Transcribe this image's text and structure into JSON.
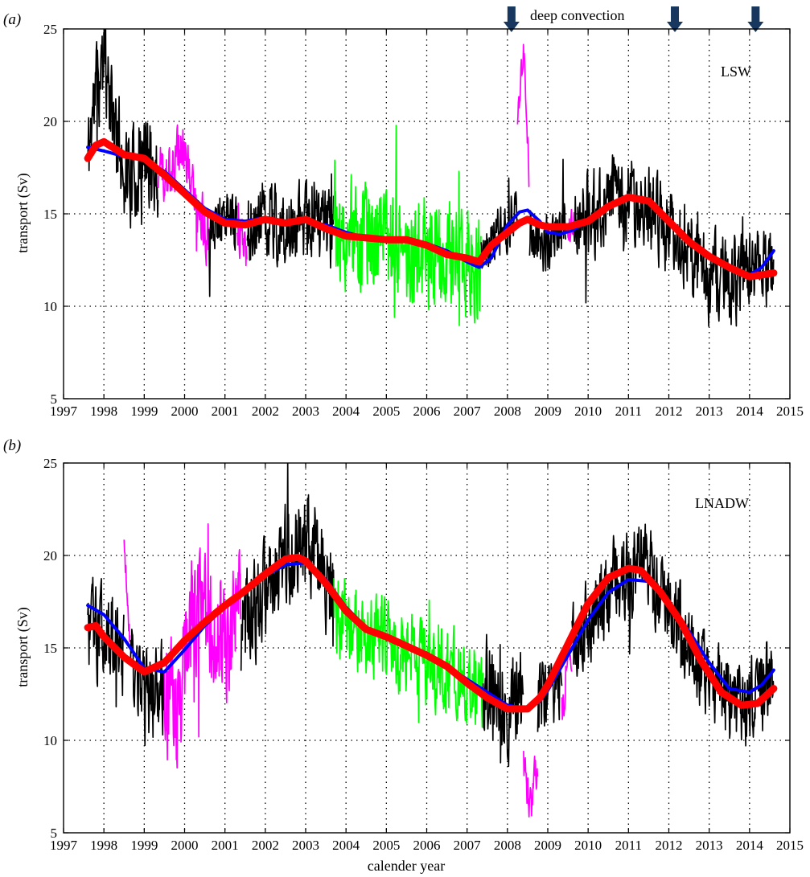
{
  "figure": {
    "xlabel": "calender year",
    "annotation": "deep convection",
    "convection_years": [
      2008.1,
      2012.15,
      2014.15
    ],
    "panels": [
      {
        "label": "(a)",
        "tag": "LSW",
        "ylabel": "transport (Sv)"
      },
      {
        "label": "(b)",
        "tag": "LNADW",
        "ylabel": "transport (Sv)"
      }
    ]
  },
  "chart_data": [
    {
      "type": "line",
      "panel_label": "(a)",
      "title": "LSW",
      "xlabel": "",
      "ylabel": "transport (Sv)",
      "xlim": [
        1997,
        2015
      ],
      "ylim": [
        5,
        25
      ],
      "xticks": [
        1997,
        1998,
        1999,
        2000,
        2001,
        2002,
        2003,
        2004,
        2005,
        2006,
        2007,
        2008,
        2009,
        2010,
        2011,
        2012,
        2013,
        2014,
        2015
      ],
      "yticks": [
        5,
        10,
        15,
        20,
        25
      ],
      "grid": true,
      "colors": {
        "raw": "#000000",
        "interpolated": "#ff00ff",
        "other_array": "#00ff00",
        "fit": "#0000ff",
        "smooth": "#ff0000"
      },
      "raw_segments": [
        {
          "color": "#000000",
          "x0": 1997.6,
          "x1": 1999.35,
          "anchors": [
            [
              1997.6,
              18
            ],
            [
              1997.8,
              22
            ],
            [
              1998.0,
              23
            ],
            [
              1998.3,
              19
            ],
            [
              1998.7,
              17
            ],
            [
              1999.0,
              18
            ],
            [
              1999.35,
              17
            ]
          ],
          "amplitude": 3.5,
          "seed": 11
        },
        {
          "color": "#ff00ff",
          "x0": 1999.35,
          "x1": 2000.6,
          "anchors": [
            [
              1999.35,
              17
            ],
            [
              1999.8,
              18
            ],
            [
              2000.0,
              19
            ],
            [
              2000.3,
              15
            ],
            [
              2000.6,
              14
            ]
          ],
          "amplitude": 2.2,
          "seed": 12
        },
        {
          "color": "#000000",
          "x0": 2000.6,
          "x1": 2001.3,
          "anchors": [
            [
              2000.6,
              14
            ],
            [
              2000.9,
              15
            ],
            [
              2001.3,
              14.5
            ]
          ],
          "amplitude": 2.0,
          "seed": 13
        },
        {
          "color": "#ff00ff",
          "x0": 2001.3,
          "x1": 2001.55,
          "anchors": [
            [
              2001.3,
              14
            ],
            [
              2001.55,
              13
            ]
          ],
          "amplitude": 1.5,
          "seed": 14
        },
        {
          "color": "#000000",
          "x0": 2001.55,
          "x1": 2003.7,
          "anchors": [
            [
              2001.55,
              14.5
            ],
            [
              2002.1,
              15
            ],
            [
              2002.6,
              14
            ],
            [
              2003.0,
              15
            ],
            [
              2003.4,
              14.5
            ],
            [
              2003.7,
              14
            ]
          ],
          "amplitude": 2.8,
          "seed": 15
        },
        {
          "color": "#00ff00",
          "x0": 2003.7,
          "x1": 2007.35,
          "anchors": [
            [
              2003.7,
              14
            ],
            [
              2004.3,
              13.5
            ],
            [
              2005.0,
              13.5
            ],
            [
              2005.7,
              13
            ],
            [
              2006.3,
              13
            ],
            [
              2007.0,
              12.5
            ],
            [
              2007.35,
              12
            ]
          ],
          "amplitude": 4.0,
          "seed": 16
        },
        {
          "color": "#000000",
          "x0": 2007.35,
          "x1": 2008.25,
          "anchors": [
            [
              2007.35,
              13
            ],
            [
              2007.8,
              14
            ],
            [
              2008.25,
              15
            ]
          ],
          "amplitude": 2.0,
          "seed": 17
        },
        {
          "color": "#ff00ff",
          "x0": 2008.25,
          "x1": 2008.55,
          "anchors": [
            [
              2008.25,
              20
            ],
            [
              2008.4,
              24
            ],
            [
              2008.55,
              16
            ]
          ],
          "amplitude": 1.2,
          "seed": 18
        },
        {
          "color": "#000000",
          "x0": 2008.55,
          "x1": 2009.45,
          "anchors": [
            [
              2008.55,
              14
            ],
            [
              2009.0,
              13.5
            ],
            [
              2009.45,
              14
            ]
          ],
          "amplitude": 2.2,
          "seed": 19
        },
        {
          "color": "#ff00ff",
          "x0": 2009.45,
          "x1": 2009.65,
          "anchors": [
            [
              2009.45,
              14
            ],
            [
              2009.65,
              14.5
            ]
          ],
          "amplitude": 1.2,
          "seed": 20
        },
        {
          "color": "#000000",
          "x0": 2009.65,
          "x1": 2014.6,
          "anchors": [
            [
              2009.65,
              14.5
            ],
            [
              2010.3,
              15.5
            ],
            [
              2010.9,
              16
            ],
            [
              2011.5,
              15.5
            ],
            [
              2012.0,
              14
            ],
            [
              2012.5,
              13
            ],
            [
              2013.0,
              11.5
            ],
            [
              2013.5,
              11.5
            ],
            [
              2014.0,
              11.5
            ],
            [
              2014.6,
              12
            ]
          ],
          "amplitude": 3.2,
          "seed": 21
        }
      ],
      "series": [
        {
          "name": "",
          "color": "#0000ff",
          "x": [
            1997.6,
            1998.0,
            1998.5,
            1999.0,
            1999.5,
            2000.0,
            2000.5,
            2001.0,
            2001.5,
            2002.0,
            2002.5,
            2003.0,
            2003.5,
            2004.0,
            2004.5,
            2005.0,
            2005.5,
            2006.0,
            2006.5,
            2007.0,
            2007.3,
            2007.6,
            2008.0,
            2008.3,
            2008.5,
            2008.8,
            2009.0,
            2009.3,
            2009.6,
            2010.0,
            2010.5,
            2011.0,
            2011.5,
            2012.0,
            2012.5,
            2013.0,
            2013.5,
            2014.0,
            2014.3,
            2014.6
          ],
          "values": [
            18.6,
            18.4,
            18.1,
            17.9,
            17.3,
            16.3,
            15.3,
            14.7,
            14.6,
            14.8,
            14.6,
            14.6,
            14.4,
            14.0,
            13.7,
            13.6,
            13.6,
            13.4,
            13.0,
            12.4,
            12.1,
            12.6,
            14.4,
            15.1,
            15.2,
            14.6,
            14.0,
            13.9,
            14.1,
            14.6,
            15.4,
            15.8,
            15.6,
            14.6,
            13.5,
            12.8,
            12.2,
            11.7,
            12.1,
            13.0
          ]
        },
        {
          "name": "",
          "color": "#ff0000",
          "x": [
            1997.6,
            1997.8,
            1998.0,
            1998.5,
            1999.0,
            1999.5,
            2000.0,
            2000.5,
            2001.0,
            2001.5,
            2002.0,
            2002.5,
            2003.0,
            2003.5,
            2004.0,
            2004.5,
            2005.0,
            2005.5,
            2006.0,
            2006.5,
            2007.0,
            2007.3,
            2007.6,
            2008.0,
            2008.3,
            2008.5,
            2008.8,
            2009.0,
            2009.5,
            2010.0,
            2010.5,
            2011.0,
            2011.5,
            2012.0,
            2012.5,
            2013.0,
            2013.5,
            2014.0,
            2014.3,
            2014.6
          ],
          "values": [
            18.0,
            18.7,
            18.9,
            18.2,
            18.0,
            17.1,
            16.1,
            15.1,
            14.5,
            14.4,
            14.7,
            14.5,
            14.7,
            14.2,
            13.8,
            13.7,
            13.6,
            13.6,
            13.3,
            12.8,
            12.6,
            12.4,
            13.3,
            14.0,
            14.5,
            14.7,
            14.4,
            14.3,
            14.3,
            14.6,
            15.4,
            15.9,
            15.7,
            14.6,
            13.5,
            12.7,
            12.1,
            11.6,
            11.7,
            11.8
          ]
        }
      ]
    },
    {
      "type": "line",
      "panel_label": "(b)",
      "title": "LNADW",
      "xlabel": "calender year",
      "ylabel": "transport (Sv)",
      "xlim": [
        1997,
        2015
      ],
      "ylim": [
        5,
        25
      ],
      "xticks": [
        1997,
        1998,
        1999,
        2000,
        2001,
        2002,
        2003,
        2004,
        2005,
        2006,
        2007,
        2008,
        2009,
        2010,
        2011,
        2012,
        2013,
        2014,
        2015
      ],
      "yticks": [
        5,
        10,
        15,
        20,
        25
      ],
      "grid": true,
      "colors": {
        "raw": "#000000",
        "interpolated": "#ff00ff",
        "other_array": "#00ff00",
        "fit": "#0000ff",
        "smooth": "#ff0000"
      },
      "raw_segments": [
        {
          "color": "#000000",
          "x0": 1997.6,
          "x1": 1998.5,
          "anchors": [
            [
              1997.6,
              16
            ],
            [
              1998.0,
              16
            ],
            [
              1998.5,
              15
            ]
          ],
          "amplitude": 3.5,
          "seed": 31
        },
        {
          "color": "#ff00ff",
          "x0": 1998.5,
          "x1": 1998.65,
          "anchors": [
            [
              1998.5,
              21
            ],
            [
              1998.65,
              15
            ]
          ],
          "amplitude": 1.0,
          "seed": 32
        },
        {
          "color": "#000000",
          "x0": 1998.65,
          "x1": 1999.5,
          "anchors": [
            [
              1998.65,
              14
            ],
            [
              1999.0,
              12
            ],
            [
              1999.5,
              13
            ]
          ],
          "amplitude": 3.2,
          "seed": 33
        },
        {
          "color": "#ff00ff",
          "x0": 1999.5,
          "x1": 2001.4,
          "anchors": [
            [
              1999.5,
              13
            ],
            [
              1999.8,
              11
            ],
            [
              2000.1,
              16
            ],
            [
              2000.4,
              18
            ],
            [
              2000.8,
              16
            ],
            [
              2001.1,
              15
            ],
            [
              2001.4,
              18
            ]
          ],
          "amplitude": 4.5,
          "seed": 34
        },
        {
          "color": "#000000",
          "x0": 2001.4,
          "x1": 2003.7,
          "anchors": [
            [
              2001.4,
              16
            ],
            [
              2002.0,
              18
            ],
            [
              2002.5,
              20
            ],
            [
              2003.0,
              21
            ],
            [
              2003.4,
              19
            ],
            [
              2003.7,
              18
            ]
          ],
          "amplitude": 3.5,
          "seed": 35
        },
        {
          "color": "#00ff00",
          "x0": 2003.7,
          "x1": 2007.4,
          "anchors": [
            [
              2003.7,
              17
            ],
            [
              2004.3,
              16
            ],
            [
              2005.0,
              15.5
            ],
            [
              2005.7,
              14.5
            ],
            [
              2006.3,
              14
            ],
            [
              2007.0,
              13.5
            ],
            [
              2007.4,
              13
            ]
          ],
          "amplitude": 3.0,
          "seed": 36
        },
        {
          "color": "#000000",
          "x0": 2007.4,
          "x1": 2008.4,
          "anchors": [
            [
              2007.4,
              13
            ],
            [
              2008.0,
              12
            ],
            [
              2008.4,
              12
            ]
          ],
          "amplitude": 3.8,
          "seed": 37
        },
        {
          "color": "#ff00ff",
          "x0": 2008.4,
          "x1": 2008.75,
          "anchors": [
            [
              2008.4,
              9
            ],
            [
              2008.55,
              6
            ],
            [
              2008.75,
              9
            ]
          ],
          "amplitude": 1.5,
          "seed": 38
        },
        {
          "color": "#000000",
          "x0": 2008.75,
          "x1": 2009.35,
          "anchors": [
            [
              2008.75,
              12
            ],
            [
              2009.0,
              13
            ],
            [
              2009.35,
              13
            ]
          ],
          "amplitude": 2.8,
          "seed": 39
        },
        {
          "color": "#ff00ff",
          "x0": 2009.35,
          "x1": 2009.6,
          "anchors": [
            [
              2009.35,
              12
            ],
            [
              2009.6,
              15
            ]
          ],
          "amplitude": 1.8,
          "seed": 40
        },
        {
          "color": "#000000",
          "x0": 2009.6,
          "x1": 2014.6,
          "anchors": [
            [
              2009.6,
              15
            ],
            [
              2010.2,
              17
            ],
            [
              2010.8,
              19
            ],
            [
              2011.3,
              19.5
            ],
            [
              2011.8,
              18
            ],
            [
              2012.3,
              16
            ],
            [
              2012.8,
              14
            ],
            [
              2013.3,
              12.5
            ],
            [
              2013.8,
              12
            ],
            [
              2014.2,
              12.5
            ],
            [
              2014.6,
              13.5
            ]
          ],
          "amplitude": 3.2,
          "seed": 41
        }
      ],
      "series": [
        {
          "name": "",
          "color": "#0000ff",
          "x": [
            1997.6,
            1998.0,
            1998.5,
            1999.0,
            1999.5,
            2000.0,
            2000.5,
            2001.0,
            2001.5,
            2002.0,
            2002.5,
            2003.0,
            2003.5,
            2004.0,
            2004.5,
            2005.0,
            2005.5,
            2006.0,
            2006.5,
            2007.0,
            2007.5,
            2008.0,
            2008.5,
            2008.8,
            2009.0,
            2009.5,
            2010.0,
            2010.5,
            2011.0,
            2011.5,
            2012.0,
            2012.5,
            2013.0,
            2013.5,
            2014.0,
            2014.3,
            2014.6
          ],
          "values": [
            17.3,
            16.8,
            15.5,
            13.9,
            13.7,
            14.9,
            16.2,
            17.2,
            18.1,
            18.9,
            19.5,
            19.6,
            18.7,
            17.2,
            16.1,
            15.6,
            15.1,
            14.6,
            14.0,
            13.3,
            12.6,
            11.9,
            11.7,
            12.1,
            12.7,
            14.6,
            16.5,
            18.0,
            18.7,
            18.6,
            17.5,
            15.9,
            14.2,
            12.8,
            12.6,
            13.0,
            13.8
          ]
        },
        {
          "name": "",
          "color": "#ff0000",
          "x": [
            1997.6,
            1997.8,
            1998.0,
            1998.5,
            1999.0,
            1999.5,
            2000.0,
            2000.5,
            2001.0,
            2001.5,
            2002.0,
            2002.5,
            2002.8,
            2003.0,
            2003.5,
            2004.0,
            2004.5,
            2005.0,
            2005.5,
            2006.0,
            2006.5,
            2007.0,
            2007.5,
            2008.0,
            2008.5,
            2008.8,
            2009.0,
            2009.5,
            2010.0,
            2010.5,
            2011.0,
            2011.3,
            2011.8,
            2012.3,
            2012.8,
            2013.3,
            2013.8,
            2014.2,
            2014.6
          ],
          "values": [
            16.1,
            16.2,
            15.6,
            14.5,
            13.7,
            14.2,
            15.4,
            16.4,
            17.3,
            18.1,
            19.0,
            19.8,
            19.9,
            19.7,
            18.5,
            17.0,
            16.0,
            15.6,
            15.1,
            14.6,
            14.0,
            13.1,
            12.3,
            11.7,
            11.7,
            12.3,
            13.0,
            15.2,
            17.4,
            18.8,
            19.3,
            19.2,
            18.0,
            16.4,
            14.3,
            12.6,
            11.9,
            12.0,
            12.8
          ]
        }
      ]
    }
  ]
}
